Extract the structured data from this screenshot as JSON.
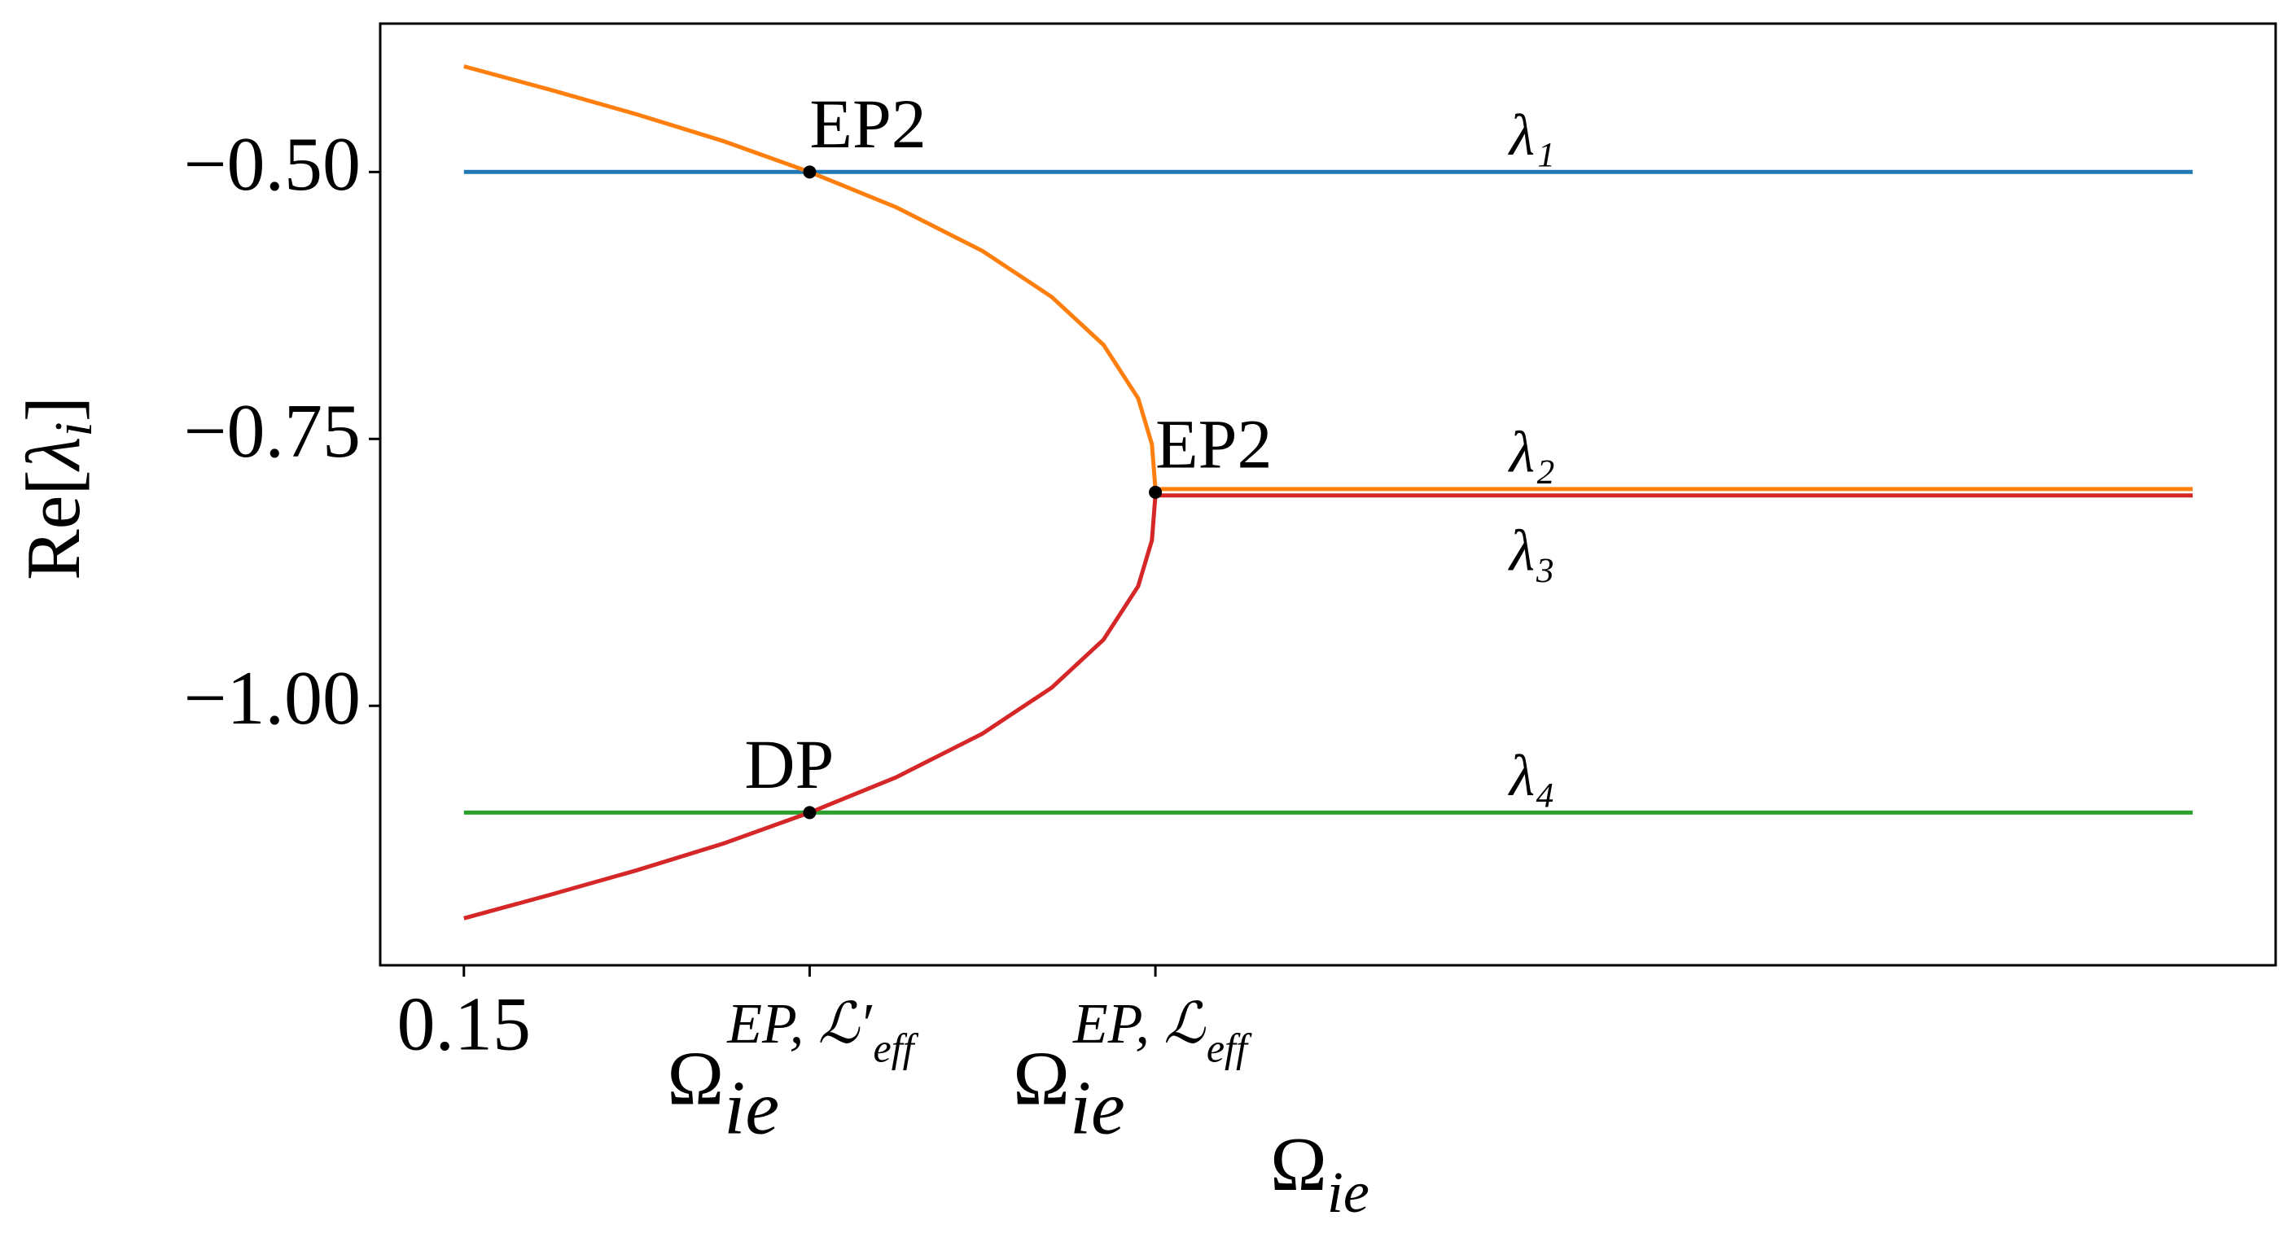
{
  "chart_data": {
    "type": "line",
    "xlabel": {
      "base": "Ω",
      "sub": "ie"
    },
    "ylabel": {
      "pre": "Re[",
      "base": "λ",
      "sub": "i",
      "post": "]"
    },
    "x": [
      0.15,
      0.175,
      0.2,
      0.225,
      0.25,
      0.275,
      0.3,
      0.32,
      0.335,
      0.345,
      0.349,
      0.35,
      0.65
    ],
    "series": [
      {
        "name": "λ₁",
        "color": "#1f77b4",
        "values": [
          -0.5,
          -0.5,
          -0.5,
          -0.5,
          -0.5,
          -0.5,
          -0.5,
          -0.5,
          -0.5,
          -0.5,
          -0.5,
          -0.5,
          -0.5
        ]
      },
      {
        "name": "λ₂",
        "color": "#ff7f0e",
        "values": [
          -0.401,
          -0.423,
          -0.446,
          -0.471,
          -0.5,
          -0.533,
          -0.574,
          -0.617,
          -0.662,
          -0.712,
          -0.755,
          -0.797,
          -0.797
        ]
      },
      {
        "name": "λ₃",
        "color": "#d62728",
        "values": [
          -1.199,
          -1.177,
          -1.154,
          -1.129,
          -1.1,
          -1.067,
          -1.026,
          -0.983,
          -0.938,
          -0.888,
          -0.845,
          -0.803,
          -0.803
        ]
      },
      {
        "name": "λ₄",
        "color": "#2ca02c",
        "values": [
          -1.1,
          -1.1,
          -1.1,
          -1.1,
          -1.1,
          -1.1,
          -1.1,
          -1.1,
          -1.1,
          -1.1,
          -1.1,
          -1.1,
          -1.1
        ]
      }
    ],
    "series_label_x": 0.459,
    "points": [
      {
        "text": "EP2",
        "x": 0.25,
        "y": -0.5
      },
      {
        "text": "EP2",
        "x": 0.35,
        "y": -0.8
      },
      {
        "text": "DP",
        "x": 0.25,
        "y": -1.1
      }
    ],
    "point_color": "#000000",
    "xlim": [
      0.1258,
      0.674
    ],
    "ylim": [
      -1.243,
      -0.361
    ],
    "xticks": [
      0.15,
      {
        "value": 0.25,
        "label": {
          "base": "Ω",
          "sub": "ie",
          "sup": "EP, ℒ′",
          "sup_sub": "eff"
        }
      },
      {
        "value": 0.35,
        "label": {
          "base": "Ω",
          "sub": "ie",
          "sup": "EP, ℒ",
          "sup_sub": "eff"
        }
      }
    ],
    "yticks": [
      {
        "value": -0.5,
        "label": "−0.50"
      },
      {
        "value": -0.75,
        "label": "−0.75"
      },
      {
        "value": -1.0,
        "label": "−1.00"
      }
    ]
  }
}
